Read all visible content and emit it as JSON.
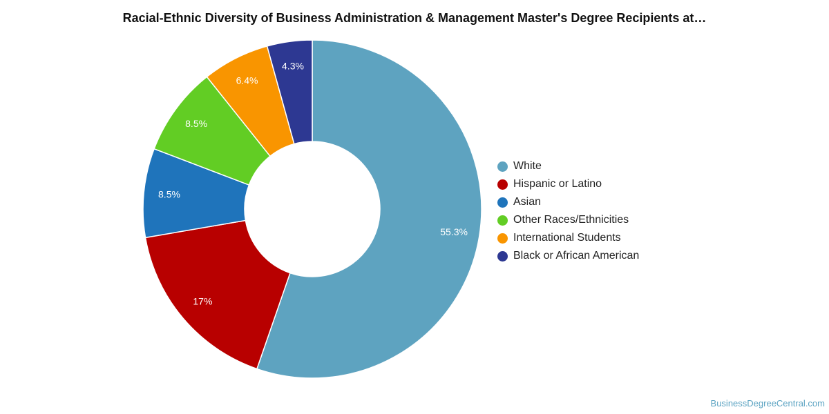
{
  "chart_data": {
    "type": "pie",
    "title": "Racial-Ethnic Diversity of Business Administration & Management Master's Degree Recipients at…",
    "donut": true,
    "legend_position": "right",
    "series": [
      {
        "name": "White",
        "value": 55.3,
        "label": "55.3%",
        "color": "#5ea3c0"
      },
      {
        "name": "Hispanic or Latino",
        "value": 17.0,
        "label": "17%",
        "color": "#b80000"
      },
      {
        "name": "Asian",
        "value": 8.5,
        "label": "8.5%",
        "color": "#1f74bb"
      },
      {
        "name": "Other Races/Ethnicities",
        "value": 8.5,
        "label": "8.5%",
        "color": "#62cd24"
      },
      {
        "name": "International Students",
        "value": 6.4,
        "label": "6.4%",
        "color": "#f99500"
      },
      {
        "name": "Black or African American",
        "value": 4.3,
        "label": "4.3%",
        "color": "#2d3892"
      }
    ]
  },
  "watermark": "BusinessDegreeCentral.com"
}
